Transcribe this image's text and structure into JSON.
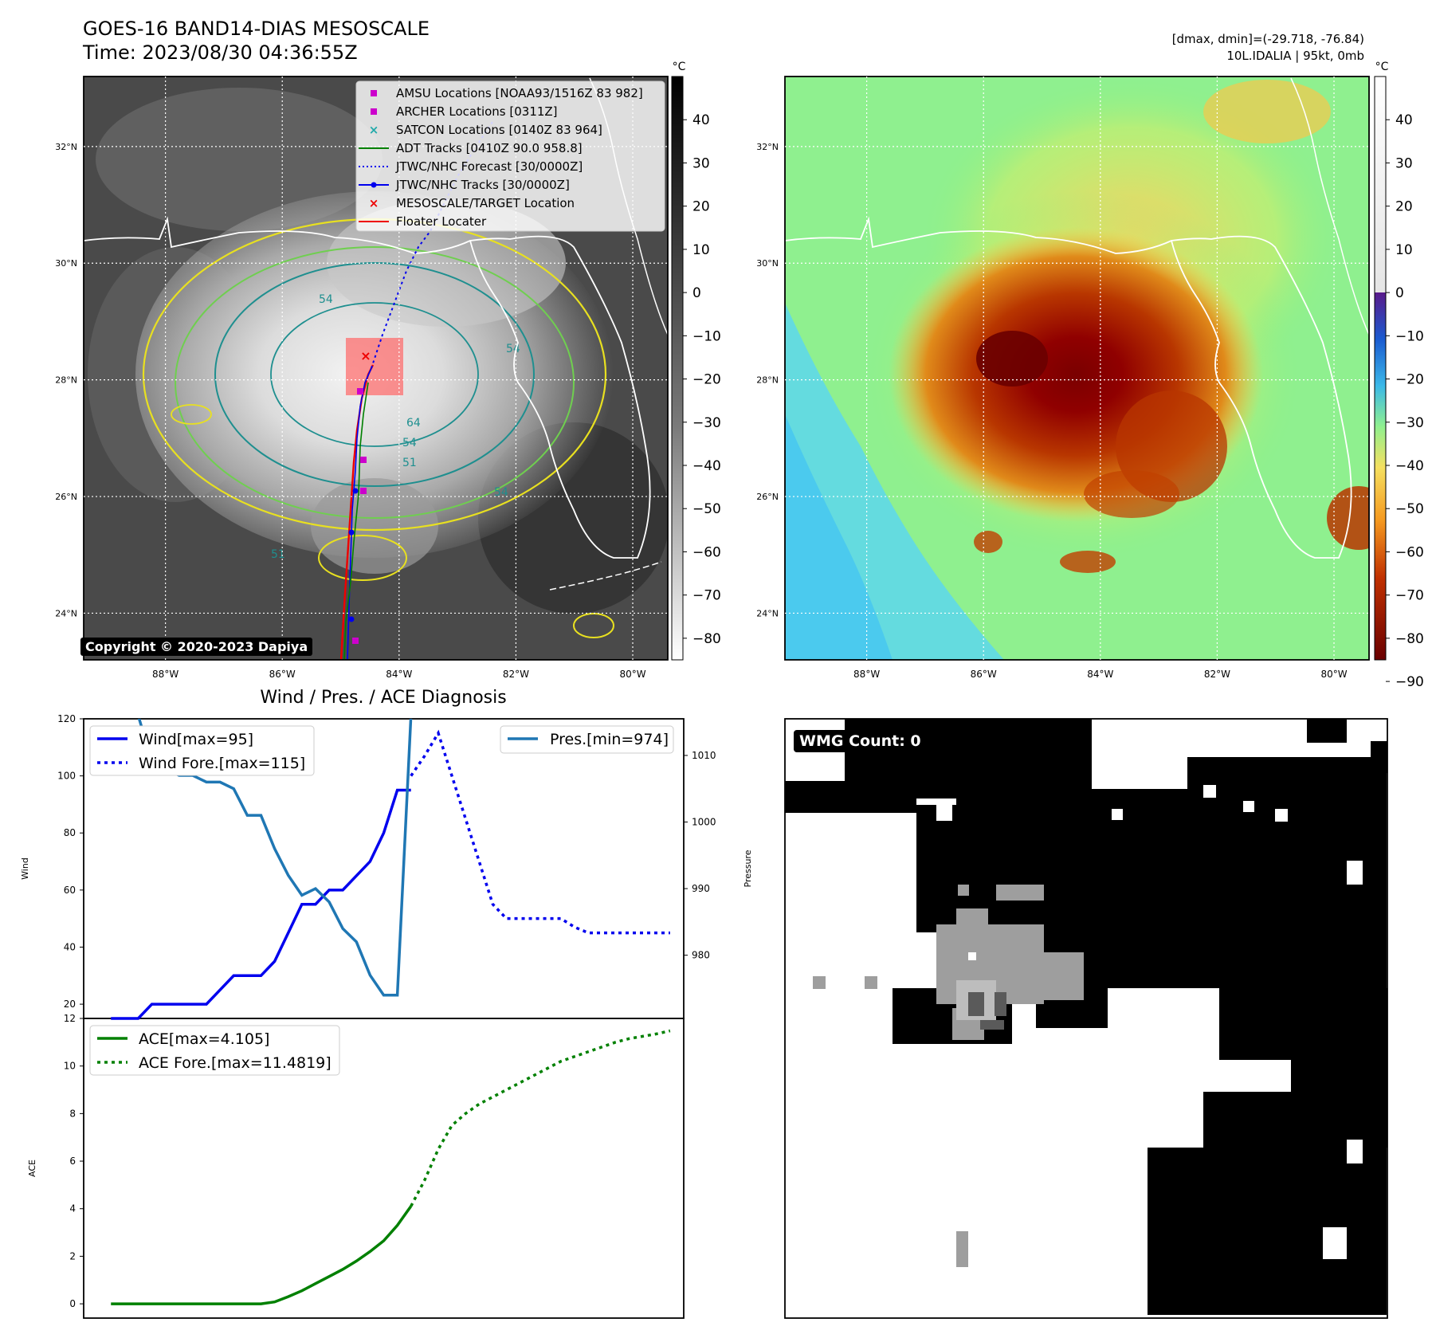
{
  "header": {
    "title_line1": "GOES-16 BAND14-DIAS MESOSCALE",
    "title_line2": "Time: 2023/08/30 04:36:55Z",
    "right_line1": "[dmax, dmin]=(-29.718, -76.84)",
    "right_line2": "10L.IDALIA | 95kt, 0mb"
  },
  "copyright": "Copyright © 2020-2023 Dapiya",
  "maps": {
    "lat_labels": [
      "32°N",
      "30°N",
      "28°N",
      "26°N",
      "24°N"
    ],
    "lat_values": [
      32,
      30,
      28,
      26,
      24
    ],
    "lon_labels": [
      "88°W",
      "86°W",
      "84°W",
      "82°W",
      "80°W"
    ],
    "lon_values": [
      -88,
      -86,
      -84,
      -82,
      -80
    ],
    "extent": {
      "lon_min": -89.4,
      "lon_max": -79.4,
      "lat_min": 23.2,
      "lat_max": 33.2
    },
    "colorbar_unit": "°C",
    "gray_colorbar_ticks": [
      "40",
      "30",
      "20",
      "10",
      "0",
      "−10",
      "−20",
      "−30",
      "−40",
      "−50",
      "−60",
      "−70",
      "−80"
    ],
    "gray_colorbar_values": [
      40,
      30,
      20,
      10,
      0,
      -10,
      -20,
      -30,
      -40,
      -50,
      -60,
      -70,
      -80
    ],
    "color_colorbar_ticks": [
      "40",
      "30",
      "20",
      "10",
      "0",
      "−10",
      "−20",
      "−30",
      "−40",
      "−50",
      "−60",
      "−70",
      "−80",
      "−90"
    ],
    "color_colorbar_values": [
      40,
      30,
      20,
      10,
      0,
      -10,
      -20,
      -30,
      -40,
      -50,
      -60,
      -70,
      -80,
      -90
    ],
    "colorbar_range": [
      -85,
      50
    ],
    "contour_labels": [
      "54",
      "54",
      "64",
      "54",
      "54",
      "51",
      "51"
    ],
    "legend": [
      {
        "label": "AMSU Locations [NOAA93/1516Z 83 982]",
        "marker": "square",
        "color": "#cc00cc"
      },
      {
        "label": "ARCHER Locations [0311Z]",
        "marker": "square",
        "color": "#cc00cc"
      },
      {
        "label": "SATCON Locations [0140Z 83 964]",
        "marker": "x",
        "color": "#22aaaa"
      },
      {
        "label": "ADT Tracks [0410Z 90.0 958.8]",
        "marker": "line",
        "color": "#008000"
      },
      {
        "label": "JTWC/NHC Forecast [30/0000Z]",
        "marker": "dotted",
        "color": "#0000ee"
      },
      {
        "label": "JTWC/NHC Tracks [30/0000Z]",
        "marker": "line-dot",
        "color": "#0000ee"
      },
      {
        "label": "MESOSCALE/TARGET Location",
        "marker": "x",
        "color": "#ee0000"
      },
      {
        "label": "Floater Locater",
        "marker": "line",
        "color": "#ee0000"
      }
    ],
    "storm_center": {
      "lon": -84.55,
      "lat": 28.25
    }
  },
  "chart_data": [
    {
      "type": "line",
      "title": "Wind / Pres. / ACE Diagnosis",
      "ylabel": "Wind",
      "ylim": [
        15,
        120
      ],
      "yticks": [
        20,
        40,
        60,
        80,
        100,
        120
      ],
      "xlim": [
        -2,
        42
      ],
      "series": [
        {
          "name": "Wind[max=95]",
          "style": "solid",
          "color": "#0000ee",
          "x": [
            0,
            1,
            2,
            3,
            4,
            5,
            6,
            7,
            8,
            9,
            10,
            11,
            12,
            13,
            14,
            15,
            16,
            17,
            18,
            19,
            20,
            21,
            22
          ],
          "y": [
            15,
            15,
            15,
            20,
            20,
            20,
            20,
            20,
            25,
            30,
            30,
            30,
            35,
            45,
            55,
            55,
            60,
            60,
            65,
            70,
            80,
            95,
            95
          ]
        },
        {
          "name": "Wind Fore.[max=115]",
          "style": "dotted",
          "color": "#0000ee",
          "x": [
            22,
            23,
            24,
            25,
            26,
            27,
            28,
            29,
            30,
            31,
            32,
            33,
            34,
            35,
            36,
            37,
            38,
            39,
            40,
            41
          ],
          "y": [
            100,
            107,
            115,
            100,
            85,
            70,
            55,
            50,
            50,
            50,
            50,
            50,
            47,
            45,
            45,
            45,
            45,
            45,
            45,
            45
          ]
        }
      ],
      "secondary_axis": {
        "ylabel": "Pressure",
        "ylim": [
          970.5,
          1015.5
        ],
        "yticks": [
          980,
          990,
          1000,
          1010
        ],
        "series": [
          {
            "name": "Pres.[min=974]",
            "style": "solid",
            "color": "#1f77b4",
            "x": [
              0,
              1,
              2,
              3,
              4,
              5,
              6,
              7,
              8,
              9,
              10,
              11,
              12,
              13,
              14,
              15,
              16,
              17,
              18,
              19,
              20,
              21,
              22
            ],
            "y": [
              1016,
              1016,
              1016,
              1009,
              1008,
              1007,
              1007,
              1006,
              1006,
              1005,
              1001,
              1001,
              996,
              992,
              989,
              990,
              988,
              984,
              982,
              977,
              974,
              974,
              1016
            ]
          }
        ]
      },
      "legend_left": [
        "Wind[max=95]",
        "Wind Fore.[max=115]"
      ],
      "legend_right": [
        "Pres.[min=974]"
      ]
    },
    {
      "type": "line",
      "ylabel": "ACE",
      "ylim": [
        -0.6,
        12
      ],
      "yticks": [
        0,
        2,
        4,
        6,
        8,
        10,
        12
      ],
      "xlim": [
        -2,
        42
      ],
      "series": [
        {
          "name": "ACE[max=4.105]",
          "style": "solid",
          "color": "#008000",
          "x": [
            0,
            1,
            2,
            3,
            4,
            5,
            6,
            7,
            8,
            9,
            10,
            11,
            12,
            13,
            14,
            15,
            16,
            17,
            18,
            19,
            20,
            21,
            22
          ],
          "y": [
            0,
            0,
            0,
            0,
            0,
            0,
            0,
            0,
            0,
            0,
            0,
            0,
            0.08,
            0.3,
            0.55,
            0.85,
            1.15,
            1.45,
            1.8,
            2.2,
            2.65,
            3.3,
            4.105
          ]
        },
        {
          "name": "ACE Fore.[max=11.4819]",
          "style": "dotted",
          "color": "#008000",
          "x": [
            22,
            23,
            24,
            25,
            26,
            27,
            28,
            29,
            30,
            31,
            32,
            33,
            34,
            35,
            36,
            37,
            38,
            39,
            40,
            41
          ],
          "y": [
            4.105,
            5.2,
            6.5,
            7.5,
            8.0,
            8.4,
            8.7,
            9.0,
            9.3,
            9.6,
            9.9,
            10.2,
            10.4,
            10.6,
            10.8,
            11.0,
            11.15,
            11.25,
            11.35,
            11.48
          ]
        }
      ],
      "legend": [
        "ACE[max=4.105]",
        "ACE Fore.[max=11.4819]"
      ]
    }
  ],
  "wmg": {
    "label": "WMG Count: 0"
  }
}
